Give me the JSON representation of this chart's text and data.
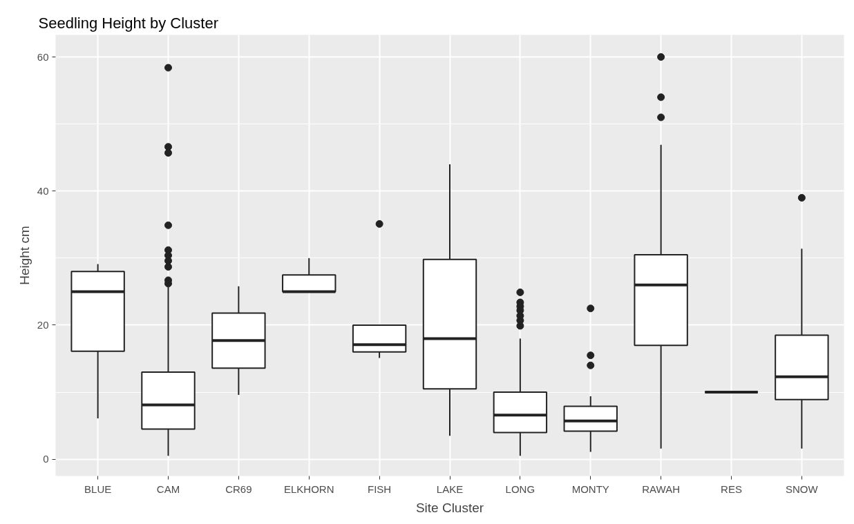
{
  "chart_data": {
    "type": "box",
    "title": "Seedling Height by Cluster",
    "xlabel": "Site Cluster",
    "ylabel": "Height cm",
    "categories": [
      "BLUE",
      "CAM",
      "CR69",
      "ELKHORN",
      "FISH",
      "LAKE",
      "LONG",
      "MONTY",
      "RAWAH",
      "RES",
      "SNOW"
    ],
    "boxes": [
      {
        "low": 6.1,
        "q1": 16.1,
        "median": 25.0,
        "q3": 28.0,
        "high": 29.1
      },
      {
        "low": 0.5,
        "q1": 4.5,
        "median": 8.1,
        "q3": 13.0,
        "high": 25.7,
        "outliers": [
          58.4,
          46.6,
          45.7,
          34.9,
          31.2,
          30.4,
          29.6,
          28.7,
          26.7,
          26.2
        ]
      },
      {
        "low": 9.6,
        "q1": 13.6,
        "median": 17.7,
        "q3": 21.8,
        "high": 25.8
      },
      {
        "low": 25.0,
        "q1": 25.0,
        "median": 25.0,
        "q3": 27.5,
        "high": 30.0
      },
      {
        "low": 15.1,
        "q1": 16.0,
        "median": 17.1,
        "q3": 20.0,
        "high": 20.0,
        "outliers": [
          35.1
        ]
      },
      {
        "low": 3.5,
        "q1": 10.5,
        "median": 18.0,
        "q3": 29.8,
        "high": 44.0
      },
      {
        "low": 0.5,
        "q1": 4.0,
        "median": 6.6,
        "q3": 10.0,
        "high": 18.0,
        "outliers": [
          24.9,
          23.4,
          22.8,
          22.2,
          21.4,
          20.7,
          19.9
        ]
      },
      {
        "low": 1.1,
        "q1": 4.2,
        "median": 5.7,
        "q3": 7.9,
        "high": 9.4,
        "outliers": [
          22.5,
          15.5,
          14.0
        ]
      },
      {
        "low": 1.6,
        "q1": 17.0,
        "median": 26.0,
        "q3": 30.5,
        "high": 46.9,
        "outliers": [
          60.0,
          54.0,
          51.0
        ]
      },
      {
        "low": 10.0,
        "q1": 10.0,
        "median": 10.0,
        "q3": 10.0,
        "high": 10.0
      },
      {
        "low": 1.6,
        "q1": 8.9,
        "median": 12.3,
        "q3": 18.5,
        "high": 31.4,
        "outliers": [
          39.0
        ]
      }
    ],
    "ylim": [
      -2.5,
      63.3
    ],
    "yticks": [
      0,
      20,
      40,
      60
    ],
    "grid": true
  }
}
